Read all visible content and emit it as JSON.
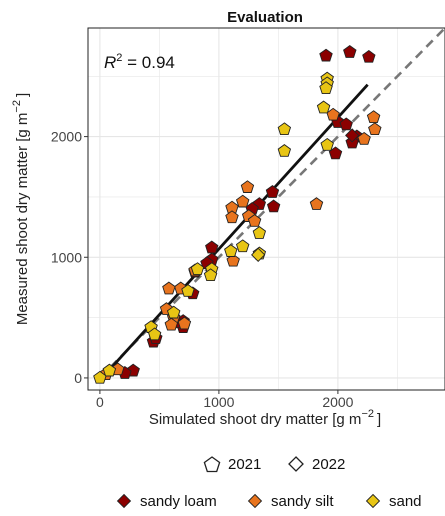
{
  "colors": {
    "sandy_loam": "#8B0000",
    "sandy_silt": "#E8741E",
    "sand": "#E8C514",
    "regression_line": "#111111",
    "one_to_one_line": "#777777",
    "grid": "#e6e6e6"
  },
  "chart_data": {
    "type": "scatter",
    "title": "Evaluation",
    "xlabel": "Simulated shoot dry matter",
    "xlabel_unit": "[g m",
    "ylabel": "Measured shoot dry matter",
    "ylabel_unit": "[g m",
    "unit_exponent": "−2",
    "unit_close": "]",
    "xlim": [
      -100,
      2900
    ],
    "ylim": [
      -100,
      2900
    ],
    "xticks": [
      0,
      1000,
      2000
    ],
    "yticks": [
      0,
      1000,
      2000
    ],
    "grid": true,
    "annotation": {
      "r2_label": "R",
      "r2_sup": "2",
      "r2_value": " = 0.94"
    },
    "one_to_one": {
      "style": "dashed",
      "x": [
        0,
        2900
      ],
      "y": [
        0,
        2900
      ]
    },
    "regression": {
      "style": "solid",
      "x": [
        0,
        2250
      ],
      "y": [
        -20,
        2430
      ]
    },
    "legend_year": {
      "placement": "bottom",
      "items": [
        {
          "label": "2021",
          "marker": "pentagon"
        },
        {
          "label": "2022",
          "marker": "diamond"
        }
      ]
    },
    "legend_soil": {
      "placement": "bottom",
      "items": [
        {
          "label": "sandy loam",
          "key": "sandy_loam"
        },
        {
          "label": "sandy silt",
          "key": "sandy_silt"
        },
        {
          "label": "sand",
          "key": "sand"
        }
      ]
    },
    "series": [
      {
        "name": "sandy loam",
        "key": "sandy_loam",
        "points": [
          {
            "x": 1900,
            "y": 2670,
            "year": "2021"
          },
          {
            "x": 2100,
            "y": 2700,
            "year": "2021"
          },
          {
            "x": 2260,
            "y": 2660,
            "year": "2021"
          },
          {
            "x": 2000,
            "y": 2120,
            "year": "2021"
          },
          {
            "x": 2070,
            "y": 2100,
            "year": "2021"
          },
          {
            "x": 2160,
            "y": 2000,
            "year": "2021"
          },
          {
            "x": 2120,
            "y": 1950,
            "year": "2021"
          },
          {
            "x": 1980,
            "y": 1860,
            "year": "2021"
          },
          {
            "x": 1450,
            "y": 1540,
            "year": "2021"
          },
          {
            "x": 1460,
            "y": 1420,
            "year": "2021"
          },
          {
            "x": 1340,
            "y": 1440,
            "year": "2021"
          },
          {
            "x": 1280,
            "y": 1400,
            "year": "2021"
          },
          {
            "x": 940,
            "y": 1080,
            "year": "2021"
          },
          {
            "x": 940,
            "y": 980,
            "year": "2021"
          },
          {
            "x": 900,
            "y": 950,
            "year": "2021"
          },
          {
            "x": 800,
            "y": 880,
            "year": "2021"
          },
          {
            "x": 780,
            "y": 700,
            "year": "2021"
          },
          {
            "x": 700,
            "y": 470,
            "year": "2021"
          },
          {
            "x": 700,
            "y": 420,
            "year": "2021"
          },
          {
            "x": 640,
            "y": 460,
            "year": "2021"
          },
          {
            "x": 450,
            "y": 300,
            "year": "2021"
          },
          {
            "x": 470,
            "y": 330,
            "year": "2021"
          },
          {
            "x": 280,
            "y": 60,
            "year": "2021"
          },
          {
            "x": 210,
            "y": 40,
            "year": "2021"
          },
          {
            "x": 2120,
            "y": 2010,
            "year": "2022"
          }
        ]
      },
      {
        "name": "sandy silt",
        "key": "sandy_silt",
        "points": [
          {
            "x": 1960,
            "y": 2180,
            "year": "2021"
          },
          {
            "x": 2300,
            "y": 2160,
            "year": "2021"
          },
          {
            "x": 2310,
            "y": 2060,
            "year": "2021"
          },
          {
            "x": 2220,
            "y": 1980,
            "year": "2021"
          },
          {
            "x": 1820,
            "y": 1440,
            "year": "2021"
          },
          {
            "x": 1240,
            "y": 1580,
            "year": "2021"
          },
          {
            "x": 1200,
            "y": 1460,
            "year": "2021"
          },
          {
            "x": 1110,
            "y": 1410,
            "year": "2021"
          },
          {
            "x": 1110,
            "y": 1330,
            "year": "2021"
          },
          {
            "x": 1250,
            "y": 1340,
            "year": "2021"
          },
          {
            "x": 1300,
            "y": 1300,
            "year": "2021"
          },
          {
            "x": 1120,
            "y": 970,
            "year": "2021"
          },
          {
            "x": 800,
            "y": 890,
            "year": "2021"
          },
          {
            "x": 680,
            "y": 740,
            "year": "2021"
          },
          {
            "x": 580,
            "y": 740,
            "year": "2021"
          },
          {
            "x": 560,
            "y": 570,
            "year": "2021"
          },
          {
            "x": 620,
            "y": 500,
            "year": "2021"
          },
          {
            "x": 710,
            "y": 450,
            "year": "2021"
          },
          {
            "x": 600,
            "y": 440,
            "year": "2021"
          },
          {
            "x": 150,
            "y": 70,
            "year": "2021"
          },
          {
            "x": 50,
            "y": 30,
            "year": "2021"
          }
        ]
      },
      {
        "name": "sand",
        "key": "sand",
        "points": [
          {
            "x": 1910,
            "y": 2480,
            "year": "2021"
          },
          {
            "x": 1910,
            "y": 2440,
            "year": "2021"
          },
          {
            "x": 1900,
            "y": 2400,
            "year": "2021"
          },
          {
            "x": 1880,
            "y": 2240,
            "year": "2021"
          },
          {
            "x": 1550,
            "y": 2060,
            "year": "2021"
          },
          {
            "x": 1550,
            "y": 1880,
            "year": "2021"
          },
          {
            "x": 1910,
            "y": 1930,
            "year": "2021"
          },
          {
            "x": 1340,
            "y": 1200,
            "year": "2021"
          },
          {
            "x": 1340,
            "y": 1030,
            "year": "2021"
          },
          {
            "x": 1200,
            "y": 1090,
            "year": "2021"
          },
          {
            "x": 1100,
            "y": 1050,
            "year": "2021"
          },
          {
            "x": 940,
            "y": 900,
            "year": "2021"
          },
          {
            "x": 930,
            "y": 850,
            "year": "2021"
          },
          {
            "x": 820,
            "y": 900,
            "year": "2021"
          },
          {
            "x": 740,
            "y": 720,
            "year": "2021"
          },
          {
            "x": 620,
            "y": 540,
            "year": "2021"
          },
          {
            "x": 430,
            "y": 420,
            "year": "2021"
          },
          {
            "x": 460,
            "y": 360,
            "year": "2021"
          },
          {
            "x": 0,
            "y": 0,
            "year": "2021"
          },
          {
            "x": 80,
            "y": 60,
            "year": "2021"
          },
          {
            "x": 1330,
            "y": 1020,
            "year": "2022"
          }
        ]
      }
    ]
  }
}
